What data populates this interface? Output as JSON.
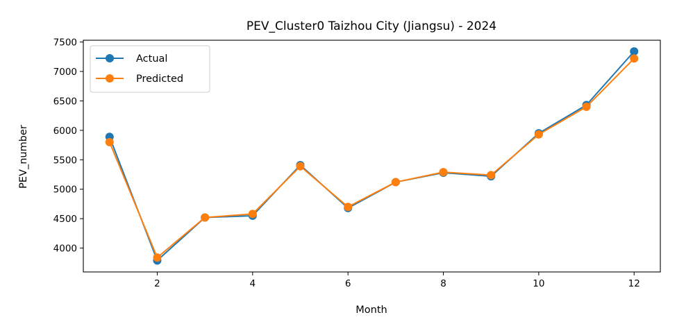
{
  "chart_data": {
    "type": "line",
    "title": "PEV_Cluster0 Taizhou City (Jiangsu) - 2024",
    "xlabel": "Month",
    "ylabel": "PEV_number",
    "xlim": [
      0.45,
      12.55
    ],
    "ylim": [
      3595,
      7530
    ],
    "xticks": [
      2,
      4,
      6,
      8,
      10,
      12
    ],
    "yticks": [
      4000,
      4500,
      5000,
      5500,
      6000,
      6500,
      7000,
      7500
    ],
    "grid": false,
    "legend_position": "top-left",
    "x": [
      1,
      2,
      3,
      4,
      5,
      6,
      7,
      8,
      9,
      10,
      11,
      12
    ],
    "series": [
      {
        "name": "Actual",
        "color": "#1f77b4",
        "values": [
          5890,
          3790,
          4520,
          4550,
          5410,
          4680,
          5120,
          5280,
          5220,
          5950,
          6430,
          7340
        ]
      },
      {
        "name": "Predicted",
        "color": "#ff7f0e",
        "values": [
          5800,
          3840,
          4520,
          4580,
          5390,
          4700,
          5120,
          5290,
          5240,
          5930,
          6400,
          7220
        ]
      }
    ]
  }
}
